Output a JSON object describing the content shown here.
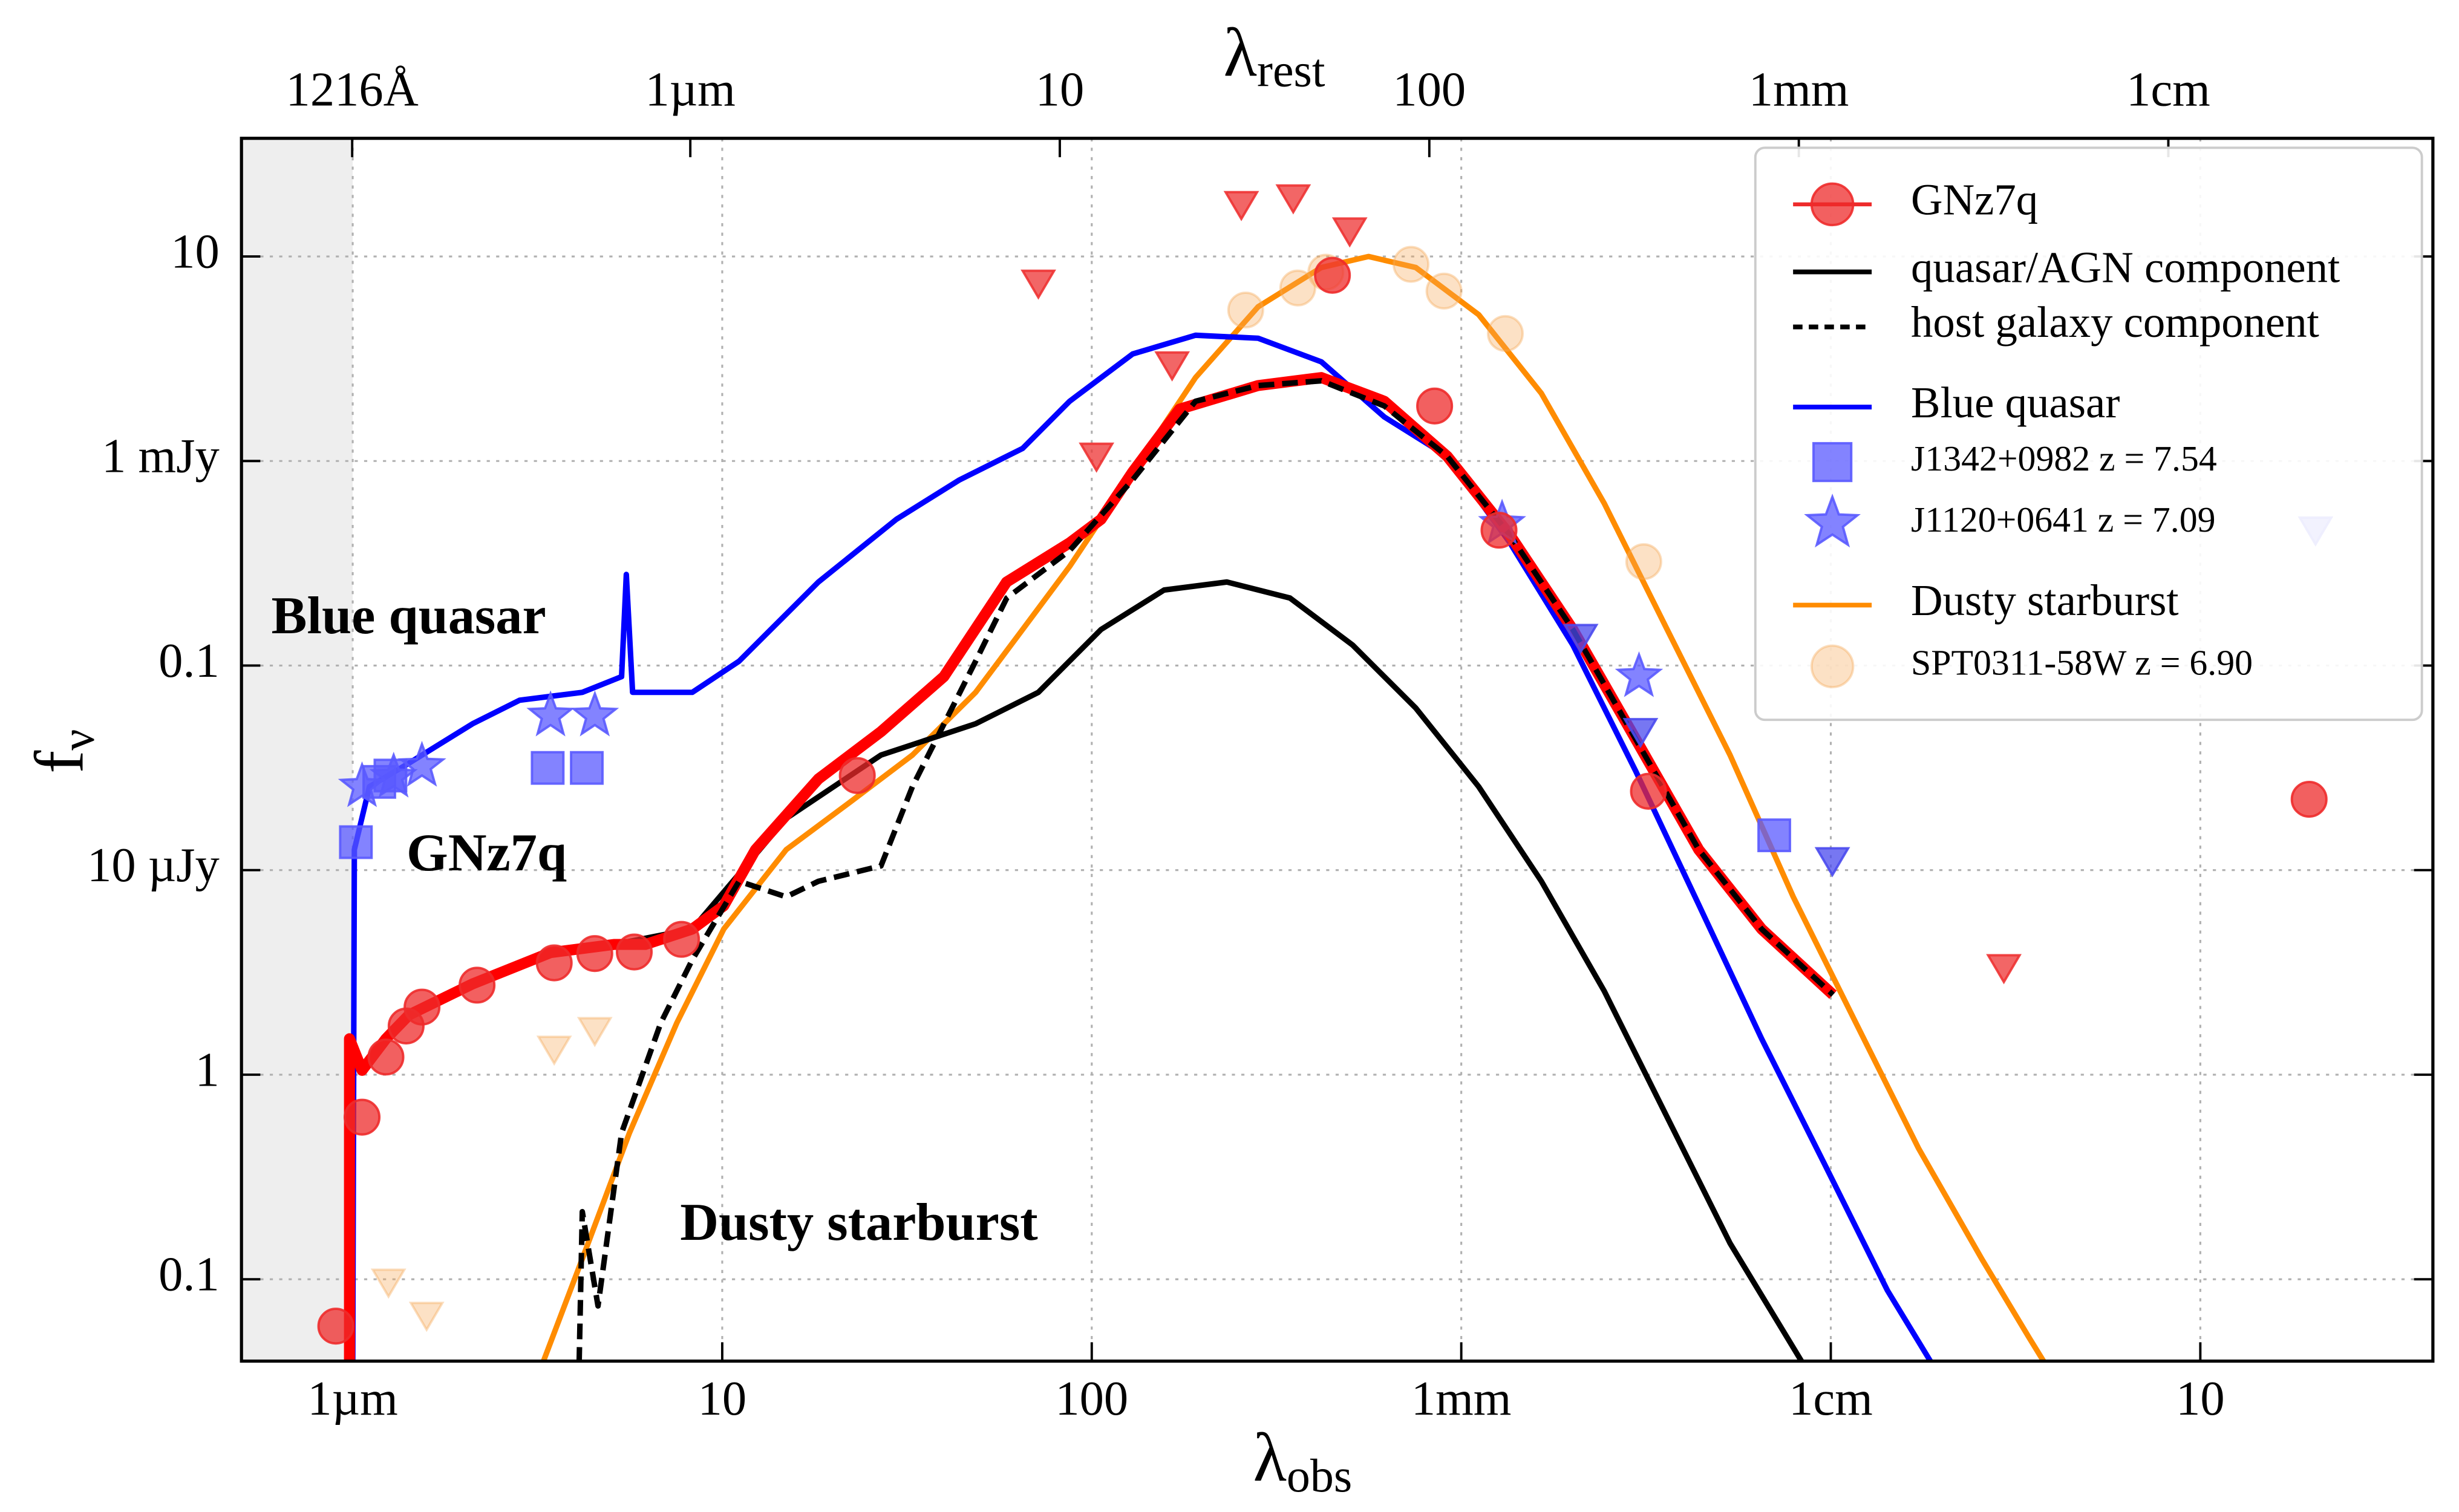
{
  "chart_data": {
    "type": "line",
    "xlabel": {
      "text": "λ",
      "sub": "obs"
    },
    "ylabel": {
      "text": "f",
      "sub": "ν"
    },
    "x2label": {
      "text": "λ",
      "sub": "rest"
    },
    "log_x": true,
    "log_y": true,
    "grid": true,
    "legend_position": "upper right",
    "xlim": [
      0.5,
      426000
    ],
    "ylim": [
      0.0398,
      37800
    ],
    "x2lim": [
      0.061,
      52000
    ],
    "shaded_region": [
      0.5,
      1
    ],
    "xticks": [
      {
        "value": 1,
        "label": "1µm"
      },
      10,
      100,
      {
        "value": 1000,
        "label": "1mm"
      },
      {
        "value": 10000,
        "label": "1cm"
      },
      {
        "value": 100000,
        "label": "10"
      }
    ],
    "yticks": [
      0.1,
      1,
      {
        "value": 10,
        "label": "10 µJy"
      },
      {
        "value": 100,
        "label": "0.1"
      },
      {
        "value": 1000,
        "label": "1 mJy"
      },
      {
        "value": 10000,
        "label": "10"
      }
    ],
    "x2ticks": [
      {
        "value": 0.1216,
        "label": "1216Å"
      },
      {
        "value": 1,
        "label": "1µm"
      },
      10,
      100,
      {
        "value": 1000,
        "label": "1mm"
      },
      {
        "value": 10000,
        "label": "1cm"
      }
    ],
    "annotations": [
      {
        "text": "Blue quasar",
        "color": "#0a0aff"
      },
      {
        "text": "GNz7q",
        "color": "#ff0a0a"
      },
      {
        "text": "Dusty starburst",
        "color": "#ff8c00"
      }
    ],
    "series": [
      {
        "name": "GNz7q",
        "type": "scatter",
        "marker": "circle",
        "color": "#ee2b2b",
        "x": [
          0.9,
          1.06,
          1.23,
          1.395,
          1.54,
          2.17,
          3.51,
          4.52,
          5.78,
          7.76,
          23.2,
          448,
          847,
          1265,
          3210,
          197000
        ],
        "values": [
          0.059,
          0.62,
          1.22,
          1.73,
          2.14,
          2.74,
          3.52,
          3.91,
          3.98,
          4.59,
          29,
          8090,
          1857,
          459,
          24.3,
          22.2
        ]
      },
      {
        "type": "line",
        "color": "#ff0000",
        "x": [
          0.98,
          0.98,
          1.06,
          1.23,
          1.42,
          2.11,
          3.43,
          5.09,
          6.19,
          8.3,
          10.1,
          12.3,
          18.2,
          26.9,
          39.8,
          58.8,
          87.1,
          106,
          129,
          173,
          282,
          418,
          619,
          916,
          1355,
          2005,
          2966,
          4393,
          6501,
          10140
        ],
        "values": [
          0.039,
          1.5,
          1.05,
          1.5,
          1.96,
          2.78,
          3.95,
          4.33,
          4.33,
          5.15,
          6.7,
          12.6,
          27.9,
          47.5,
          88.3,
          256,
          398,
          519,
          884,
          1794,
          2339,
          2558,
          1959,
          1054,
          435,
          150,
          43.7,
          12.6,
          5.15,
          2.46
        ]
      },
      {
        "name": "quasar/AGN component",
        "type": "line",
        "color": "#000000",
        "x": [
          0.98,
          0.98,
          1.06,
          1.23,
          1.42,
          2.11,
          3.43,
          5.09,
          8.3,
          14.9,
          26.9,
          48.5,
          71.7,
          106,
          157,
          232,
          344,
          508,
          753,
          1114,
          1648,
          2438,
          3606,
          5340,
          8380
        ],
        "values": [
          0.039,
          1.5,
          1.05,
          1.5,
          1.96,
          2.78,
          3.95,
          4.33,
          5.15,
          17.9,
          36.5,
          51.9,
          74,
          150,
          234,
          256,
          214,
          126,
          62,
          25.6,
          8.83,
          2.56,
          0.62,
          0.15,
          0.039
        ]
      },
      {
        "name": "host galaxy component",
        "type": "line",
        "dashed": true,
        "color": "#000000",
        "x": [
          4.1,
          4.18,
          4.61,
          5.34,
          6.82,
          8.3,
          11.1,
          14.9,
          18.2,
          26.9,
          32.7,
          48.5,
          58.9,
          87.1,
          129,
          191,
          282,
          418,
          619,
          916,
          1355,
          2005,
          2966,
          4393,
          6501,
          10140
        ],
        "values": [
          0.039,
          0.214,
          0.074,
          0.519,
          1.79,
          3.65,
          8.83,
          7.4,
          8.83,
          10.5,
          25.6,
          105,
          214,
          365,
          809,
          1959,
          2339,
          2467,
          1857,
          1054,
          435,
          150,
          43.7,
          12.6,
          5.15,
          2.46
        ]
      },
      {
        "name": "Blue quasar",
        "type": "line",
        "color": "#0000ff",
        "x": [
          1.0,
          1.01,
          1.11,
          1.42,
          2.11,
          2.83,
          4.18,
          5.34,
          5.5,
          5.72,
          8.3,
          11.1,
          18.2,
          29.6,
          43.9,
          65,
          87.1,
          129,
          191,
          282,
          418,
          619,
          916,
          1355,
          2005,
          2966,
          4393,
          6501,
          9616,
          14230,
          18720
        ],
        "values": [
          0.039,
          12.6,
          25.6,
          33.4,
          51.9,
          67.7,
          74,
          88.3,
          279,
          74,
          74,
          105,
          256,
          519,
          809,
          1153,
          1959,
          3334,
          4121,
          3981,
          3053,
          1642,
          1054,
          398,
          126,
          30.5,
          6.78,
          1.5,
          0.366,
          0.0883,
          0.039
        ]
      },
      {
        "name": "J1342+0982 z = 7.54",
        "type": "scatter",
        "marker": "square",
        "color": "#5a5aff",
        "x": [
          1.02,
          1.18,
          1.265,
          3.37,
          4.3,
          7030
        ],
        "values": [
          13.7,
          27,
          29,
          31.6,
          31.6,
          14.8
        ]
      },
      {
        "name": "J1120+0641 z = 7.09",
        "type": "scatter",
        "marker": "star",
        "color": "#5a5aff",
        "x": [
          1.06,
          1.29,
          1.54,
          3.43,
          4.52,
          1290,
          3026
        ],
        "values": [
          25.6,
          28.5,
          32.2,
          56.8,
          56.8,
          492,
          88.3
        ]
      },
      {
        "name": "Dusty starburst",
        "type": "line",
        "color": "#ff8c00",
        "x": [
          3.27,
          4.18,
          5.61,
          7.53,
          10.1,
          14.9,
          22.1,
          32.7,
          48.5,
          65,
          87.1,
          129,
          191,
          282,
          418,
          561,
          753,
          1114,
          1648,
          2438,
          3606,
          5340,
          7910,
          11700,
          17300,
          25600,
          34400,
          37900
        ],
        "values": [
          0.039,
          0.126,
          0.519,
          1.79,
          5.15,
          12.6,
          21.4,
          36.5,
          74,
          150,
          305,
          884,
          2558,
          5670,
          8830,
          10000,
          8830,
          5190,
          2140,
          620,
          150,
          36.5,
          7.4,
          1.79,
          0.435,
          0.126,
          0.0519,
          0.039
        ]
      },
      {
        "name": "SPT0311-58W z = 6.90",
        "type": "scatter",
        "marker": "circle",
        "faint": true,
        "color": "#f5a95a",
        "x": [
          261,
          361,
          430,
          731,
          898,
          1316,
          3118
        ],
        "values": [
          5470,
          7010,
          8380,
          9150,
          6770,
          4200,
          322
        ]
      },
      {
        "type": "scatter",
        "marker": "triangle-down",
        "color": "#ee3333",
        "x": [
          71.7,
          103,
          165,
          254,
          351,
          499,
          29400
        ],
        "values": [
          7390,
          1054,
          2944,
          17900,
          19300,
          13300,
          3.33
        ]
      },
      {
        "type": "scatter",
        "marker": "triangle-down",
        "color": "#4a4aee",
        "x": [
          2105,
          3055,
          10100,
          205000
        ],
        "values": [
          137,
          47.5,
          11.1,
          459
        ]
      },
      {
        "type": "scatter",
        "marker": "triangle-down",
        "faint": true,
        "color": "#f5a95a",
        "x": [
          3.51,
          4.52,
          1.25,
          1.585
        ],
        "values": [
          1.33,
          1.64,
          0.0966,
          0.0665
        ]
      }
    ]
  }
}
